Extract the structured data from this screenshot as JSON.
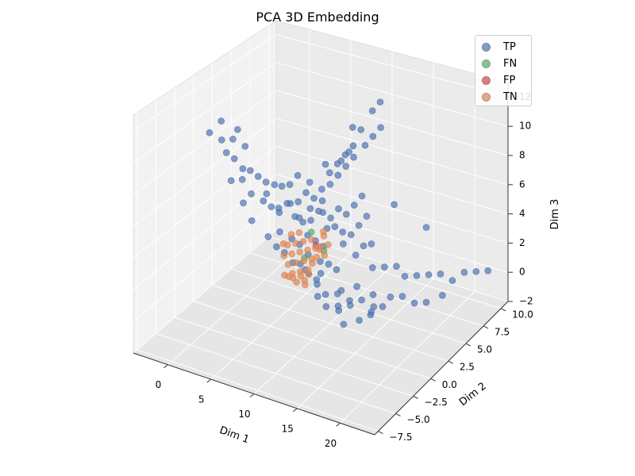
{
  "chart_data": {
    "type": "scatter",
    "projection": "3d",
    "title": "PCA 3D Embedding",
    "xlabel": "Dim 1",
    "ylabel": "Dim 2",
    "zlabel": "Dim 3",
    "xlim": [
      -4,
      24
    ],
    "ylim": [
      -8,
      11
    ],
    "zlim": [
      -2,
      13
    ],
    "x_ticks": [
      0,
      5,
      10,
      15,
      20
    ],
    "x_tick_labels": [
      "0",
      "5",
      "10",
      "15",
      "20"
    ],
    "y_ticks": [
      -7.5,
      -5.0,
      -2.5,
      0.0,
      2.5,
      5.0,
      7.5,
      10.0
    ],
    "y_tick_labels": [
      "−7.5",
      "−5.0",
      "−2.5",
      "0.0",
      "2.5",
      "5.0",
      "7.5",
      "10.0"
    ],
    "z_ticks": [
      -2,
      0,
      2,
      4,
      6,
      8,
      10,
      12
    ],
    "z_tick_labels": [
      "−2",
      "0",
      "2",
      "4",
      "6",
      "8",
      "10",
      "12"
    ],
    "grid": true,
    "legend_position": "top-right",
    "series": [
      {
        "name": "TP",
        "color": "#4c72b0",
        "points": [
          [
            -3,
            1,
            9
          ],
          [
            -2.5,
            2,
            9.5
          ],
          [
            -2,
            1.5,
            8.5
          ],
          [
            -1,
            2.5,
            9
          ],
          [
            -2,
            3,
            8
          ],
          [
            -1,
            3.5,
            7.5
          ],
          [
            0,
            2,
            6
          ],
          [
            0.5,
            2.5,
            6.5
          ],
          [
            1,
            3,
            6
          ],
          [
            1.5,
            3.5,
            5.5
          ],
          [
            2,
            3,
            5
          ],
          [
            2.5,
            3.5,
            5.5
          ],
          [
            0.5,
            1.5,
            7
          ],
          [
            2.5,
            2,
            5
          ],
          [
            3,
            2.5,
            4.5
          ],
          [
            3.5,
            3,
            4
          ],
          [
            4,
            3.5,
            4.5
          ],
          [
            1.5,
            1.5,
            5.5
          ],
          [
            4.5,
            4,
            3.5
          ],
          [
            5,
            4.5,
            3
          ],
          [
            4,
            2.5,
            3
          ],
          [
            5,
            3,
            2.5
          ],
          [
            5.5,
            3.5,
            2
          ],
          [
            6,
            4,
            2.5
          ],
          [
            6.5,
            4.5,
            2
          ],
          [
            7,
            5,
            1.5
          ],
          [
            7.5,
            4,
            1
          ],
          [
            8,
            3.5,
            0.5
          ],
          [
            8.5,
            4,
            1
          ],
          [
            9,
            4.5,
            0.5
          ],
          [
            6,
            2,
            1.5
          ],
          [
            7,
            2.5,
            1
          ],
          [
            8,
            3,
            0
          ],
          [
            9,
            3,
            -0.5
          ],
          [
            10,
            3.5,
            -0.5
          ],
          [
            11,
            4,
            -1
          ],
          [
            12,
            4.5,
            -1
          ],
          [
            13,
            5,
            -1.5
          ],
          [
            11,
            2.5,
            -1
          ],
          [
            12,
            2,
            -1.5
          ],
          [
            13,
            3,
            -1.5
          ],
          [
            14,
            3.5,
            -1
          ],
          [
            6,
            7,
            5.5
          ],
          [
            6.5,
            7.5,
            6
          ],
          [
            7,
            8,
            6.5
          ],
          [
            7.5,
            8.5,
            7
          ],
          [
            6.5,
            6.5,
            5
          ],
          [
            7,
            7,
            5.5
          ],
          [
            7.5,
            7.5,
            6
          ],
          [
            8,
            8,
            6.5
          ],
          [
            8.5,
            9,
            7
          ],
          [
            9,
            9.5,
            7.5
          ],
          [
            8,
            9,
            8
          ],
          [
            9.5,
            10,
            8
          ],
          [
            5,
            6,
            4
          ],
          [
            5.5,
            6.5,
            4.5
          ],
          [
            6,
            6,
            4
          ],
          [
            6.5,
            5.5,
            3.5
          ],
          [
            7,
            6,
            3
          ],
          [
            7.5,
            6.5,
            3.5
          ],
          [
            8,
            7,
            3
          ],
          [
            8.5,
            7.5,
            3.5
          ],
          [
            9,
            8,
            4
          ],
          [
            5.5,
            5,
            3
          ],
          [
            6,
            5.5,
            3.5
          ],
          [
            7,
            5.5,
            2.5
          ],
          [
            7.5,
            6,
            2.5
          ],
          [
            8,
            6.5,
            2
          ],
          [
            8.5,
            6,
            1.5
          ],
          [
            9,
            6.5,
            2
          ],
          [
            9.5,
            7,
            2.5
          ],
          [
            10,
            7.5,
            3
          ],
          [
            4,
            5,
            4
          ],
          [
            4.5,
            5.5,
            4.5
          ],
          [
            5,
            5.5,
            3.5
          ],
          [
            3.5,
            4.5,
            4
          ],
          [
            3,
            5,
            5
          ],
          [
            2.5,
            4.5,
            5
          ],
          [
            10,
            6,
            1
          ],
          [
            10.5,
            6.5,
            1.5
          ],
          [
            11,
            7,
            1.5
          ],
          [
            12,
            6,
            0.5
          ],
          [
            13,
            6.5,
            0.5
          ],
          [
            14,
            7,
            0.5
          ],
          [
            15,
            7,
            0
          ],
          [
            16,
            7.5,
            0
          ],
          [
            17,
            8,
            0
          ],
          [
            18,
            8.5,
            0
          ],
          [
            19,
            9,
            -0.5
          ],
          [
            20,
            9.5,
            0
          ],
          [
            15,
            5,
            -0.5
          ],
          [
            16,
            5.5,
            -0.5
          ],
          [
            17,
            6,
            -1
          ],
          [
            18,
            6.5,
            -1
          ],
          [
            19.5,
            7,
            -0.5
          ],
          [
            21,
            10,
            0
          ],
          [
            22,
            10.5,
            0
          ],
          [
            15,
            10,
            2
          ],
          [
            12,
            9,
            3.5
          ],
          [
            8.5,
            10,
            9
          ],
          [
            9,
            10.5,
            9.5
          ],
          [
            7,
            9,
            8
          ],
          [
            5.5,
            7,
            6
          ],
          [
            4.5,
            6,
            5
          ],
          [
            3.5,
            5.5,
            5.5
          ],
          [
            10,
            4,
            -0.5
          ],
          [
            11.5,
            3.5,
            -1
          ],
          [
            6,
            3,
            1
          ],
          [
            6.5,
            3.5,
            1.5
          ],
          [
            7,
            3,
            0.5
          ],
          [
            7.5,
            3.5,
            0
          ],
          [
            8.5,
            2.5,
            -0.5
          ],
          [
            9.5,
            2.5,
            -1
          ],
          [
            10.5,
            3,
            -1
          ],
          [
            11,
            5,
            -0.5
          ],
          [
            12.5,
            5.5,
            -1
          ],
          [
            13.5,
            4,
            -1.5
          ],
          [
            14.5,
            4.5,
            -1
          ],
          [
            5,
            2,
            2
          ],
          [
            4.5,
            1.5,
            2.5
          ],
          [
            3.5,
            1.5,
            3
          ],
          [
            2,
            1,
            4
          ],
          [
            1,
            1,
            5
          ],
          [
            0,
            0.5,
            6.5
          ],
          [
            -1,
            1,
            8
          ],
          [
            -0.5,
            1.5,
            7.5
          ],
          [
            6.5,
            8,
            6
          ],
          [
            7,
            8.5,
            6.5
          ],
          [
            5,
            4,
            3.5
          ],
          [
            3,
            3.5,
            4
          ]
        ]
      },
      {
        "name": "FN",
        "color": "#55a868",
        "points": [
          [
            6,
            4.5,
            2.5
          ],
          [
            7.5,
            4.5,
            1.5
          ],
          [
            6.5,
            3,
            1.5
          ]
        ]
      },
      {
        "name": "FP",
        "color": "#c44e52",
        "points": [
          [
            7,
            4,
            2
          ]
        ]
      },
      {
        "name": "TN",
        "color": "#dd8452",
        "points": [
          [
            5,
            3,
            1.5
          ],
          [
            5.5,
            3.5,
            1.5
          ],
          [
            6,
            3.5,
            1
          ],
          [
            6.5,
            4,
            1
          ],
          [
            5,
            2.5,
            1
          ],
          [
            5.5,
            2.5,
            0.5
          ],
          [
            6,
            3,
            0.5
          ],
          [
            6.5,
            3.5,
            0.5
          ],
          [
            7,
            3.5,
            1
          ],
          [
            7,
            4.5,
            1.5
          ],
          [
            6,
            4.5,
            2
          ],
          [
            5.5,
            4,
            2
          ],
          [
            5,
            3.5,
            2
          ],
          [
            4.5,
            3,
            2
          ],
          [
            4.5,
            2.5,
            1.5
          ],
          [
            6,
            2.5,
            0
          ],
          [
            6.5,
            2.5,
            0.5
          ],
          [
            7.5,
            3.5,
            1.5
          ],
          [
            7,
            2.5,
            0
          ],
          [
            5.5,
            2,
            0.5
          ],
          [
            6.5,
            3,
            0
          ],
          [
            7.5,
            4,
            2
          ],
          [
            8,
            4,
            1.5
          ],
          [
            5,
            4,
            2.5
          ],
          [
            4.5,
            3.5,
            2.5
          ],
          [
            6,
            4,
            1.5
          ],
          [
            6.5,
            4.5,
            1.5
          ],
          [
            5.5,
            3,
            1
          ],
          [
            7,
            3,
            0.5
          ],
          [
            5,
            2,
            0.5
          ],
          [
            7.5,
            4.5,
            2.5
          ],
          [
            4,
            3,
            2
          ],
          [
            6,
            2,
            0.5
          ],
          [
            8,
            4.5,
            2
          ],
          [
            7,
            5,
            2.5
          ]
        ]
      }
    ]
  }
}
